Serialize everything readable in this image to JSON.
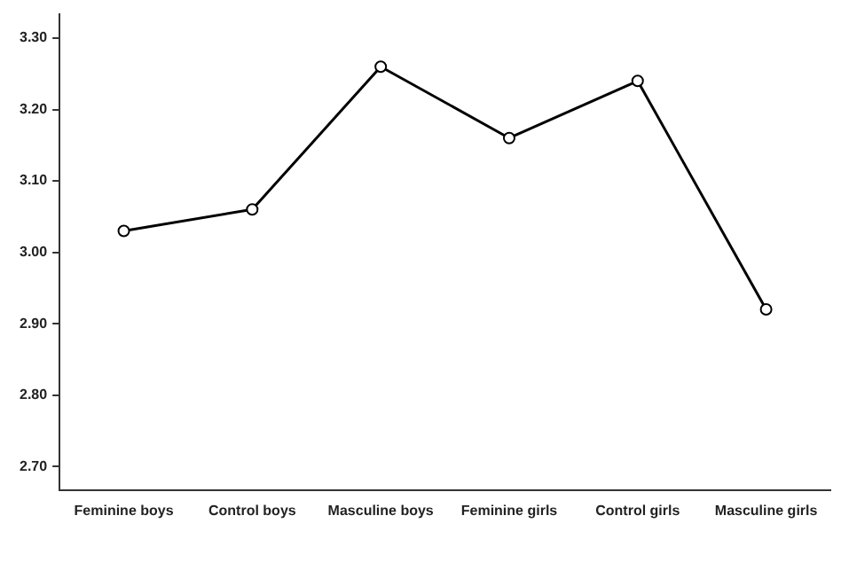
{
  "chart_data": {
    "type": "line",
    "categories": [
      "Feminine boys",
      "Control boys",
      "Masculine boys",
      "Feminine girls",
      "Control girls",
      "Masculine girls"
    ],
    "series": [
      {
        "color": "#000000",
        "values": [
          3.03,
          3.06,
          3.26,
          3.16,
          3.24,
          2.92
        ]
      }
    ],
    "ylim": [
      2.667,
      3.334
    ],
    "yticks": [
      {
        "value": 2.7,
        "label": "2.70"
      },
      {
        "value": 2.8,
        "label": "2.80"
      },
      {
        "value": 2.9,
        "label": "2.90"
      },
      {
        "value": 3.0,
        "label": "3.00"
      },
      {
        "value": 3.1,
        "label": "3.10"
      },
      {
        "value": 3.2,
        "label": "3.20"
      },
      {
        "value": 3.3,
        "label": "3.30"
      }
    ],
    "grid": false,
    "legend": false,
    "marker": "circle",
    "line_style": "solid"
  }
}
